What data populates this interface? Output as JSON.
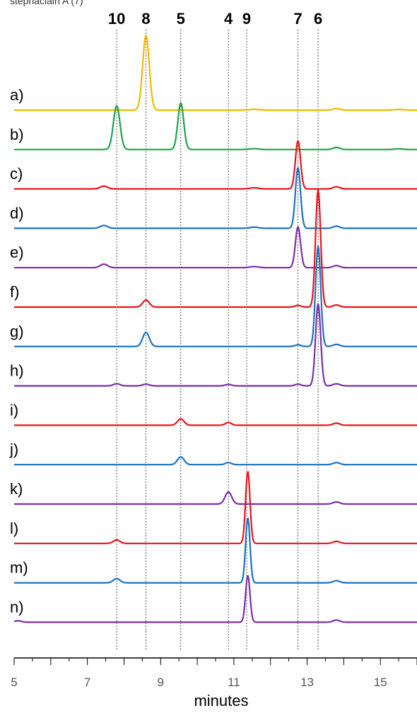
{
  "header_text": "stephaciain A (7)",
  "chart_data": {
    "type": "line",
    "xlabel": "minutes",
    "xlim": [
      5,
      16
    ],
    "xticks": [
      5,
      7,
      9,
      11,
      13,
      15
    ],
    "grid": false,
    "peak_markers": [
      {
        "label": "10",
        "x": 7.8
      },
      {
        "label": "8",
        "x": 8.6
      },
      {
        "label": "5",
        "x": 9.55
      },
      {
        "label": "4",
        "x": 10.85
      },
      {
        "label": "9",
        "x": 11.35
      },
      {
        "label": "7",
        "x": 12.75
      },
      {
        "label": "6",
        "x": 13.3
      }
    ],
    "series": [
      {
        "name": "a)",
        "color": "#f5b800",
        "peaks": [
          {
            "x": 8.6,
            "h": 5.3,
            "w": 0.09
          },
          {
            "x": 11.55,
            "h": 0.06,
            "w": 0.12
          },
          {
            "x": 13.8,
            "h": 0.12,
            "w": 0.09
          },
          {
            "x": 15.5,
            "h": 0.05,
            "w": 0.12
          }
        ]
      },
      {
        "name": "b)",
        "color": "#1aa64a",
        "peaks": [
          {
            "x": 7.8,
            "h": 3.1,
            "w": 0.09
          },
          {
            "x": 9.55,
            "h": 3.3,
            "w": 0.08
          },
          {
            "x": 11.55,
            "h": 0.06,
            "w": 0.12
          },
          {
            "x": 13.8,
            "h": 0.15,
            "w": 0.09
          },
          {
            "x": 15.5,
            "h": 0.05,
            "w": 0.12
          }
        ]
      },
      {
        "name": "c)",
        "color": "#e8141c",
        "peaks": [
          {
            "x": 7.45,
            "h": 0.2,
            "w": 0.1
          },
          {
            "x": 11.55,
            "h": 0.08,
            "w": 0.12
          },
          {
            "x": 12.75,
            "h": 3.4,
            "w": 0.07
          },
          {
            "x": 13.8,
            "h": 0.15,
            "w": 0.09
          }
        ]
      },
      {
        "name": "d)",
        "color": "#1b72c0",
        "peaks": [
          {
            "x": 7.45,
            "h": 0.2,
            "w": 0.1
          },
          {
            "x": 11.55,
            "h": 0.08,
            "w": 0.12
          },
          {
            "x": 12.75,
            "h": 4.3,
            "w": 0.07
          },
          {
            "x": 13.8,
            "h": 0.15,
            "w": 0.09
          }
        ]
      },
      {
        "name": "e)",
        "color": "#7b2fa8",
        "peaks": [
          {
            "x": 7.45,
            "h": 0.25,
            "w": 0.1
          },
          {
            "x": 11.55,
            "h": 0.08,
            "w": 0.12
          },
          {
            "x": 12.75,
            "h": 2.9,
            "w": 0.07
          },
          {
            "x": 13.8,
            "h": 0.15,
            "w": 0.09
          }
        ]
      },
      {
        "name": "f)",
        "color": "#e8141c",
        "peaks": [
          {
            "x": 8.6,
            "h": 0.5,
            "w": 0.09
          },
          {
            "x": 12.75,
            "h": 0.12,
            "w": 0.08
          },
          {
            "x": 13.3,
            "h": 8.3,
            "w": 0.07
          },
          {
            "x": 13.8,
            "h": 0.15,
            "w": 0.09
          }
        ]
      },
      {
        "name": "g)",
        "color": "#1b72c0",
        "peaks": [
          {
            "x": 8.6,
            "h": 1.0,
            "w": 0.09
          },
          {
            "x": 12.75,
            "h": 0.12,
            "w": 0.08
          },
          {
            "x": 13.3,
            "h": 7.1,
            "w": 0.07
          },
          {
            "x": 13.8,
            "h": 0.15,
            "w": 0.09
          }
        ]
      },
      {
        "name": "h)",
        "color": "#7b2fa8",
        "peaks": [
          {
            "x": 7.8,
            "h": 0.15,
            "w": 0.09
          },
          {
            "x": 8.6,
            "h": 0.12,
            "w": 0.09
          },
          {
            "x": 10.85,
            "h": 0.1,
            "w": 0.09
          },
          {
            "x": 12.75,
            "h": 0.12,
            "w": 0.08
          },
          {
            "x": 13.3,
            "h": 5.8,
            "w": 0.07
          },
          {
            "x": 13.8,
            "h": 0.15,
            "w": 0.09
          }
        ]
      },
      {
        "name": "i)",
        "color": "#e8141c",
        "peaks": [
          {
            "x": 9.55,
            "h": 0.45,
            "w": 0.09
          },
          {
            "x": 10.85,
            "h": 0.2,
            "w": 0.08
          },
          {
            "x": 13.8,
            "h": 0.15,
            "w": 0.09
          }
        ]
      },
      {
        "name": "j)",
        "color": "#1b72c0",
        "peaks": [
          {
            "x": 9.55,
            "h": 0.55,
            "w": 0.09
          },
          {
            "x": 10.85,
            "h": 0.15,
            "w": 0.08
          },
          {
            "x": 13.8,
            "h": 0.15,
            "w": 0.09
          }
        ]
      },
      {
        "name": "k)",
        "color": "#7b2fa8",
        "peaks": [
          {
            "x": 10.85,
            "h": 0.85,
            "w": 0.09
          },
          {
            "x": 13.8,
            "h": 0.15,
            "w": 0.09
          }
        ]
      },
      {
        "name": "l)",
        "color": "#e8141c",
        "peaks": [
          {
            "x": 7.8,
            "h": 0.25,
            "w": 0.09
          },
          {
            "x": 11.38,
            "h": 5.1,
            "w": 0.06
          },
          {
            "x": 13.8,
            "h": 0.15,
            "w": 0.09
          }
        ]
      },
      {
        "name": "m)",
        "color": "#1b72c0",
        "peaks": [
          {
            "x": 7.8,
            "h": 0.3,
            "w": 0.09
          },
          {
            "x": 11.38,
            "h": 4.6,
            "w": 0.06
          },
          {
            "x": 13.8,
            "h": 0.15,
            "w": 0.09
          }
        ]
      },
      {
        "name": "n)",
        "color": "#7b2fa8",
        "peaks": [
          {
            "x": 5.1,
            "h": 0.1,
            "w": 0.1
          },
          {
            "x": 11.38,
            "h": 3.3,
            "w": 0.06
          },
          {
            "x": 13.8,
            "h": 0.15,
            "w": 0.09
          }
        ]
      }
    ]
  }
}
